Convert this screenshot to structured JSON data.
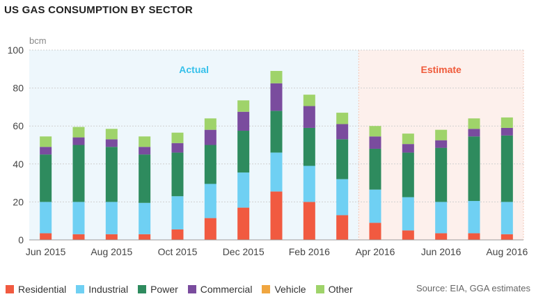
{
  "title": "US GAS CONSUMPTION BY SECTOR",
  "source": "Source: EIA, GGA estimates",
  "colors": {
    "Residential": "#f15a40",
    "Industrial": "#6fd0f3",
    "Power": "#2e8b5e",
    "Commercial": "#7a4c9e",
    "Vehicle": "#f0a640",
    "Other": "#9fd36a",
    "actual_bg": "#eef7fc",
    "estimate_bg": "#fdf0ec",
    "actual_text": "#35c0ea",
    "estimate_text": "#ef5a3a"
  },
  "chart_data": {
    "type": "bar",
    "stacked": true,
    "ylabel": "bcm",
    "ylim": [
      0,
      100
    ],
    "yticks": [
      0,
      20,
      40,
      60,
      80,
      100
    ],
    "grid": true,
    "legend_position": "bottom",
    "categories": [
      "Jun 2015",
      "Jul 2015",
      "Aug 2015",
      "Sep 2015",
      "Oct 2015",
      "Nov 2015",
      "Dec 2015",
      "Jan 2016",
      "Feb 2016",
      "Mar 2016",
      "Apr 2016",
      "May 2016",
      "Jun 2016",
      "Jul 2016",
      "Aug 2016"
    ],
    "tick_labels": [
      "Jun 2015",
      "Aug 2015",
      "Oct 2015",
      "Dec 2015",
      "Feb 2016",
      "Apr 2016",
      "Jun 2016",
      "Aug 2016"
    ],
    "regions": [
      {
        "label": "Actual",
        "from_index": 0,
        "to_index": 9
      },
      {
        "label": "Estimate",
        "from_index": 10,
        "to_index": 14
      }
    ],
    "series": [
      {
        "name": "Residential",
        "values": [
          3.5,
          3,
          3,
          3,
          5.5,
          11.5,
          17,
          25.5,
          20,
          13,
          9,
          5,
          3.5,
          3.5,
          3
        ]
      },
      {
        "name": "Industrial",
        "values": [
          16.5,
          17,
          17,
          16.5,
          17.5,
          18,
          18.5,
          20.5,
          19,
          19,
          17.5,
          17.5,
          16.5,
          17,
          17
        ]
      },
      {
        "name": "Power",
        "values": [
          25,
          30,
          29,
          25.5,
          23,
          20.5,
          22,
          22,
          20,
          21,
          21.5,
          23.5,
          28.5,
          34,
          35
        ]
      },
      {
        "name": "Commercial",
        "values": [
          4,
          4,
          4,
          4,
          5,
          8,
          10,
          14.5,
          11.5,
          8,
          6.5,
          4.5,
          4,
          4,
          4
        ]
      },
      {
        "name": "Vehicle",
        "values": [
          0,
          0,
          0,
          0,
          0,
          0,
          0,
          0,
          0,
          0,
          0,
          0,
          0,
          0,
          0
        ]
      },
      {
        "name": "Other",
        "values": [
          5.5,
          5.5,
          5.5,
          5.5,
          5.5,
          6,
          6,
          6.5,
          6,
          6,
          5.5,
          5.5,
          5.5,
          5.5,
          5.5
        ]
      }
    ]
  }
}
